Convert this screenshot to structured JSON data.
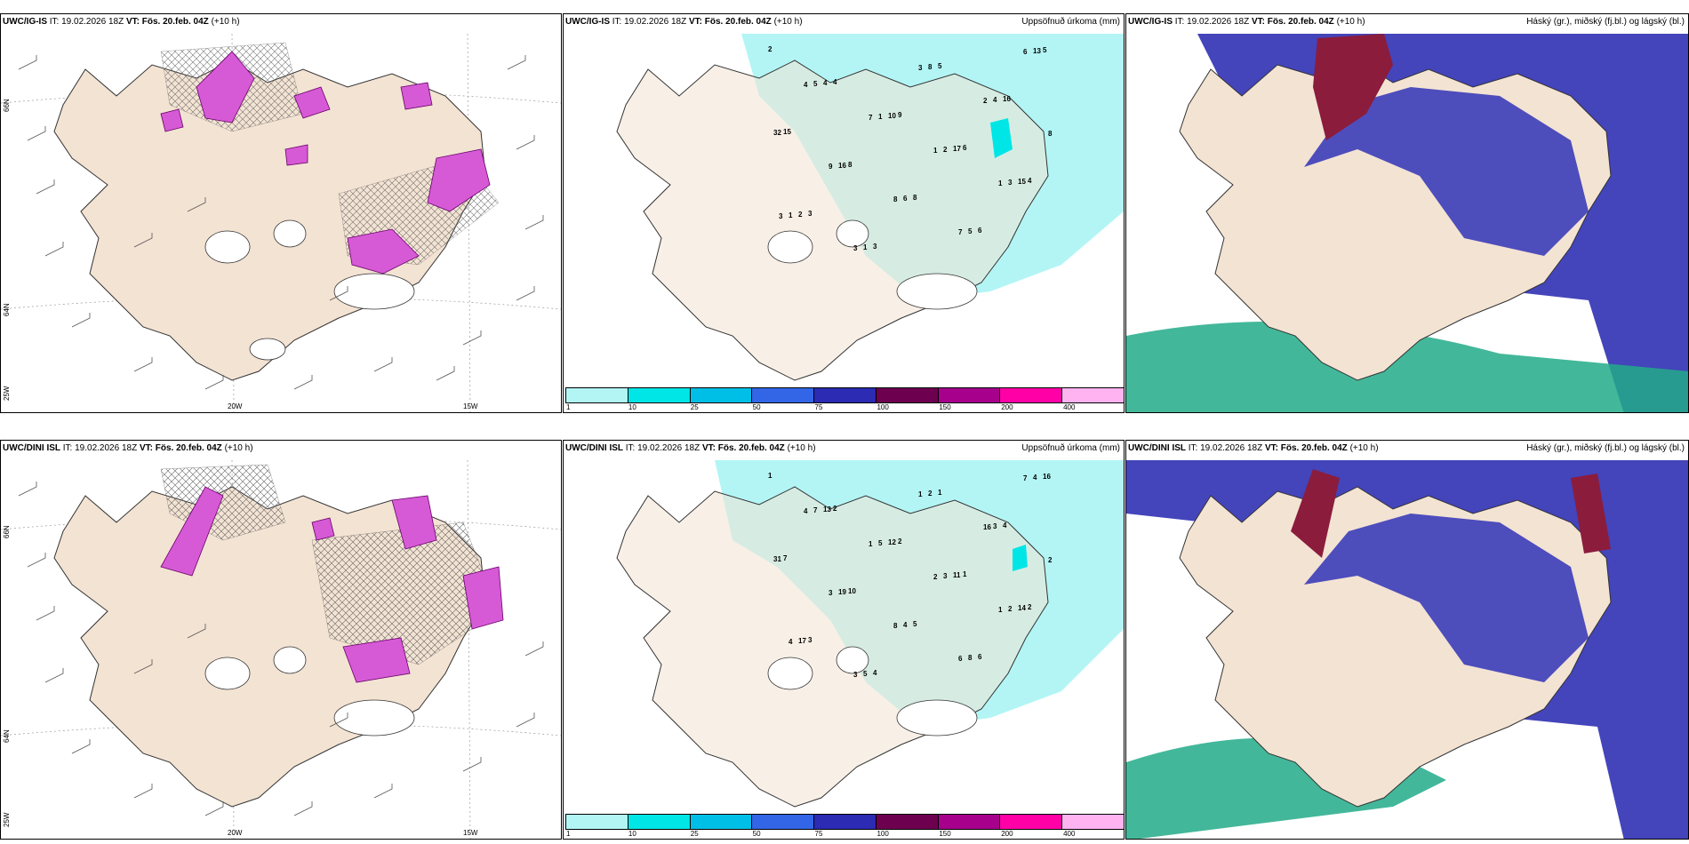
{
  "panels": [
    {
      "model": "UWC/IG-IS",
      "it": "IT: 19.02.2026 18Z",
      "vt_label": "VT:",
      "vt": "Fös. 20.feb. 04Z",
      "lead": "(+10 h)",
      "right": ""
    },
    {
      "model": "UWC/IG-IS",
      "it": "IT: 19.02.2026 18Z",
      "vt_label": "VT:",
      "vt": "Fös. 20.feb. 04Z",
      "lead": "(+10 h)",
      "right": "Uppsöfnuð úrkoma (mm)"
    },
    {
      "model": "UWC/IG-IS",
      "it": "IT: 19.02.2026 18Z",
      "vt_label": "VT:",
      "vt": "Fös. 20.feb. 04Z",
      "lead": "(+10 h)",
      "right": "Háský (gr.), miðský (fj.bl.) og lágský (bl.)"
    },
    {
      "model": "UWC/DINI ISL",
      "it": "IT: 19.02.2026 18Z",
      "vt_label": "VT:",
      "vt": "Fös. 20.feb. 04Z",
      "lead": "(+10 h)",
      "right": ""
    },
    {
      "model": "UWC/DINI ISL",
      "it": "IT: 19.02.2026 18Z",
      "vt_label": "VT:",
      "vt": "Fös. 20.feb. 04Z",
      "lead": "(+10 h)",
      "right": "Uppsöfnuð úrkoma (mm)"
    },
    {
      "model": "UWC/DINI ISL",
      "it": "IT: 19.02.2026 18Z",
      "vt_label": "VT:",
      "vt": "Fös. 20.feb. 04Z",
      "lead": "(+10 h)",
      "right": "Háský (gr.), miðský (fj.bl.) og lágský (bl.)"
    }
  ],
  "axes": {
    "lon_20": "20W",
    "lon_15": "15W",
    "lat_66": "66N",
    "lat_64": "64N",
    "lat_25": "25W"
  },
  "colorbar": {
    "labels": [
      "1",
      "10",
      "25",
      "50",
      "75",
      "100",
      "150",
      "200",
      "400"
    ],
    "colors": [
      "#b3f5f5",
      "#00e6e6",
      "#00bfe6",
      "#3366e6",
      "#2b2bb3",
      "#6e0050",
      "#a6008c",
      "#ff00a6",
      "#ffb3f0"
    ]
  },
  "precip_values_top": [
    "2",
    "4",
    "9",
    "6",
    "4",
    "3",
    "3",
    "5",
    "16",
    "15",
    "8",
    "8",
    "6",
    "5",
    "4",
    "10",
    "17",
    "15",
    "2",
    "1",
    "8",
    "4",
    "32",
    "16",
    "6",
    "5",
    "13",
    "5",
    "1",
    "2",
    "3",
    "1",
    "3",
    "3",
    "2",
    "8",
    "9",
    "8",
    "7",
    "6",
    "4",
    "7",
    "1",
    "1",
    "3"
  ],
  "precip_values_bottom": [
    "1",
    "2",
    "2",
    "1",
    "2",
    "3",
    "4",
    "1",
    "4",
    "7",
    "10",
    "5",
    "6",
    "16",
    "13",
    "12",
    "11",
    "14",
    "17",
    "5",
    "2",
    "3",
    "31",
    "19",
    "4",
    "8",
    "4",
    "7",
    "5",
    "3",
    "2",
    "4",
    "3",
    "1",
    "16",
    "2",
    "3",
    "8",
    "6",
    "7",
    "4",
    "1",
    "2",
    "1"
  ],
  "colors": {
    "land": "#f3e3d3",
    "precip_light": "#b3f5f5",
    "pink": "#d65ad6",
    "cloud_high": "#8b1c3c",
    "cloud_mid": "#4444bb",
    "cloud_low": "#22aa88"
  }
}
